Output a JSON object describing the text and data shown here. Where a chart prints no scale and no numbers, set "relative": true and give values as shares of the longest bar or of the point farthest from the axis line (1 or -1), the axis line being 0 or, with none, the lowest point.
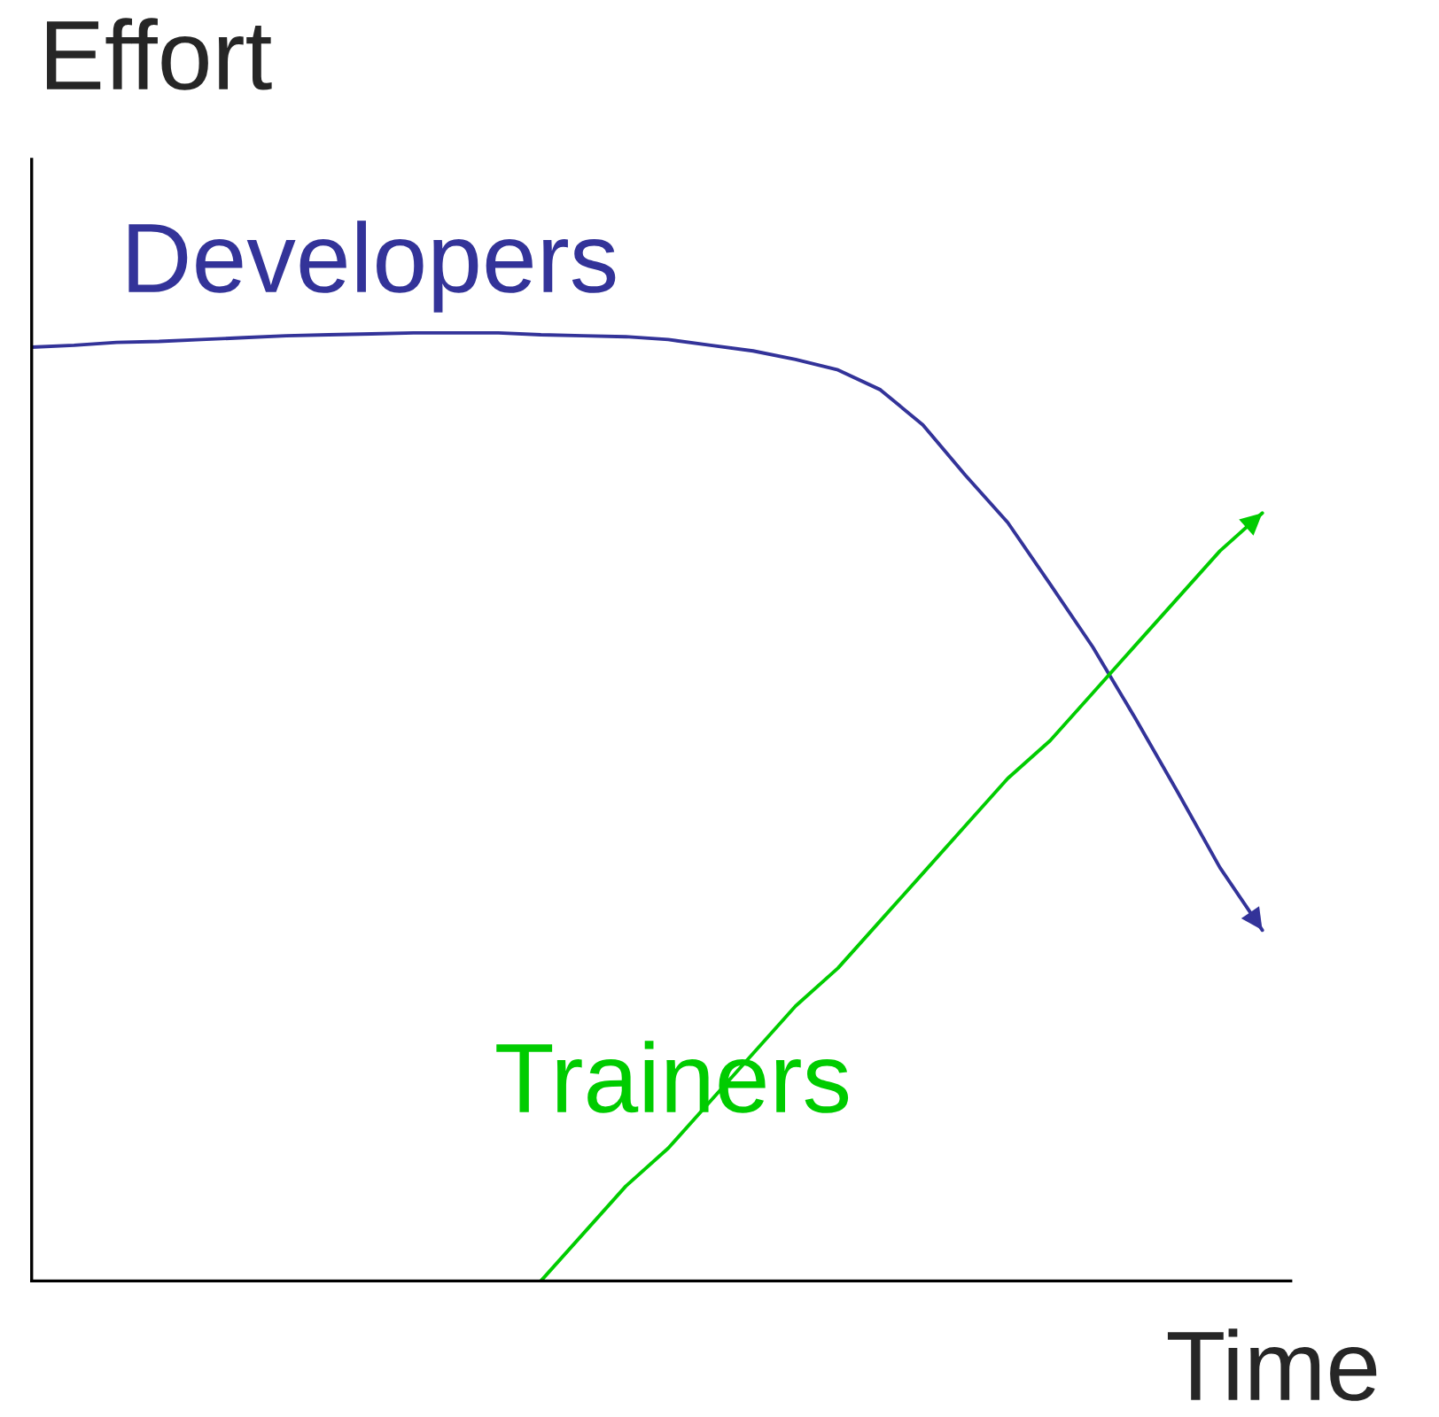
{
  "chart_data": {
    "type": "line",
    "relative": true,
    "xlabel": "Time",
    "ylabel": "Effort",
    "marker": "none",
    "line_style": "solid",
    "categories": [
      null,
      null,
      null,
      null,
      null,
      null,
      null,
      null,
      null,
      null,
      null,
      null,
      null,
      null,
      null,
      null,
      null,
      null,
      null,
      null,
      null,
      null,
      null,
      null,
      null,
      null,
      null,
      null,
      null,
      null
    ],
    "series": [
      {
        "name": "Developers",
        "color": "#333399",
        "values": [
          0.985,
          0.987,
          0.99,
          0.991,
          0.993,
          0.995,
          0.997,
          0.998,
          0.999,
          1,
          1,
          1,
          0.998,
          0.997,
          0.996,
          0.993,
          0.987,
          0.981,
          0.972,
          0.961,
          0.94,
          0.903,
          0.85,
          0.8,
          0.735,
          0.669,
          0.594,
          0.516,
          0.436,
          0.37
        ]
      },
      {
        "name": "Trainers",
        "color": "#00cc00",
        "values": [
          null,
          null,
          null,
          null,
          null,
          null,
          null,
          null,
          null,
          null,
          null,
          null,
          0,
          0.05,
          0.1,
          0.14,
          0.19,
          0.24,
          0.29,
          0.33,
          0.38,
          0.43,
          0.48,
          0.53,
          0.57,
          0.62,
          0.67,
          0.72,
          0.77,
          0.81
        ]
      }
    ]
  }
}
